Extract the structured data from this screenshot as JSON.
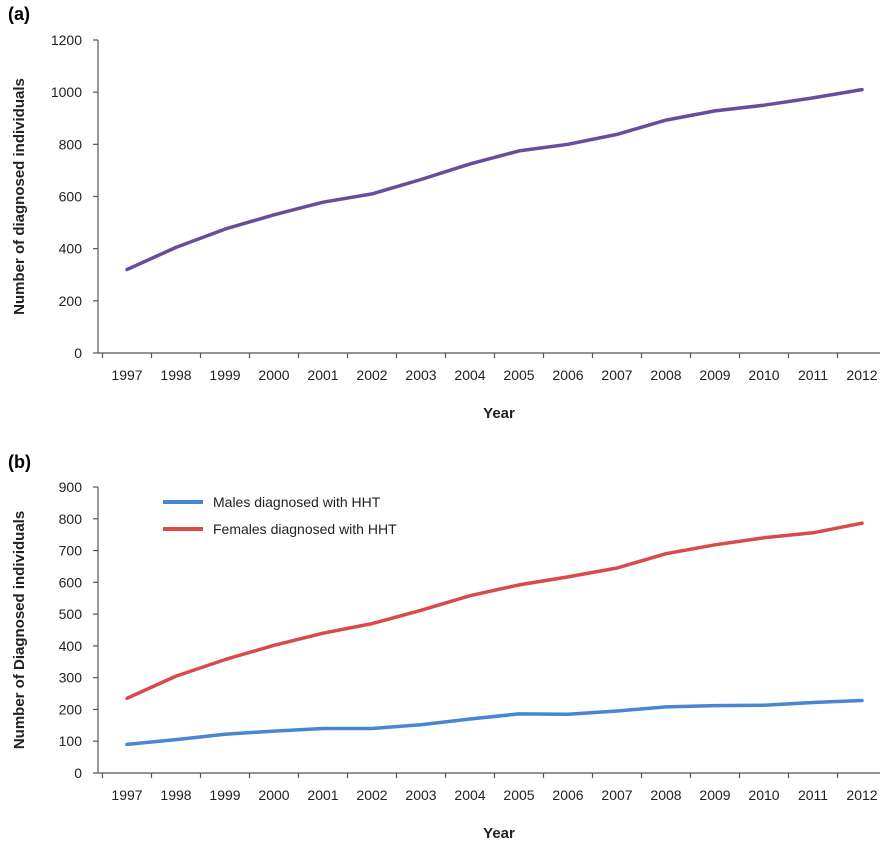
{
  "chart_data": [
    {
      "panel": "(a)",
      "type": "line",
      "categories": [
        "1997",
        "1998",
        "1999",
        "2000",
        "2001",
        "2002",
        "2003",
        "2004",
        "2005",
        "2006",
        "2007",
        "2008",
        "2009",
        "2010",
        "2011",
        "2012"
      ],
      "series": [
        {
          "values": [
            320,
            405,
            475,
            530,
            578,
            610,
            665,
            725,
            775,
            800,
            838,
            893,
            928,
            950,
            978,
            1010
          ],
          "color": "#6a4c9c"
        }
      ],
      "xlabel": "Year",
      "ylabel": "Number of diagnosed individuals",
      "ylim": [
        0,
        1200
      ],
      "yticks": [
        0,
        200,
        400,
        600,
        800,
        1000,
        1200
      ],
      "grid": false,
      "legend": "none"
    },
    {
      "panel": "(b)",
      "type": "line",
      "categories": [
        "1997",
        "1998",
        "1999",
        "2000",
        "2001",
        "2002",
        "2003",
        "2004",
        "2005",
        "2006",
        "2007",
        "2008",
        "2009",
        "2010",
        "2011",
        "2012"
      ],
      "series": [
        {
          "name": "Males diagnosed with HHT",
          "values": [
            90,
            105,
            122,
            132,
            140,
            140,
            152,
            170,
            186,
            185,
            195,
            208,
            212,
            213,
            222,
            228
          ],
          "color": "#4a86d0"
        },
        {
          "name": "Females diagnosed with HHT",
          "values": [
            235,
            305,
            357,
            402,
            440,
            470,
            512,
            558,
            592,
            617,
            645,
            690,
            718,
            740,
            756,
            786
          ],
          "color": "#d94a4a"
        }
      ],
      "xlabel": "Year",
      "ylabel": "Number of Diagnosed individuals",
      "ylim": [
        0,
        900
      ],
      "yticks": [
        0,
        100,
        200,
        300,
        400,
        500,
        600,
        700,
        800,
        900
      ],
      "grid": false,
      "legend": "top-left"
    }
  ]
}
